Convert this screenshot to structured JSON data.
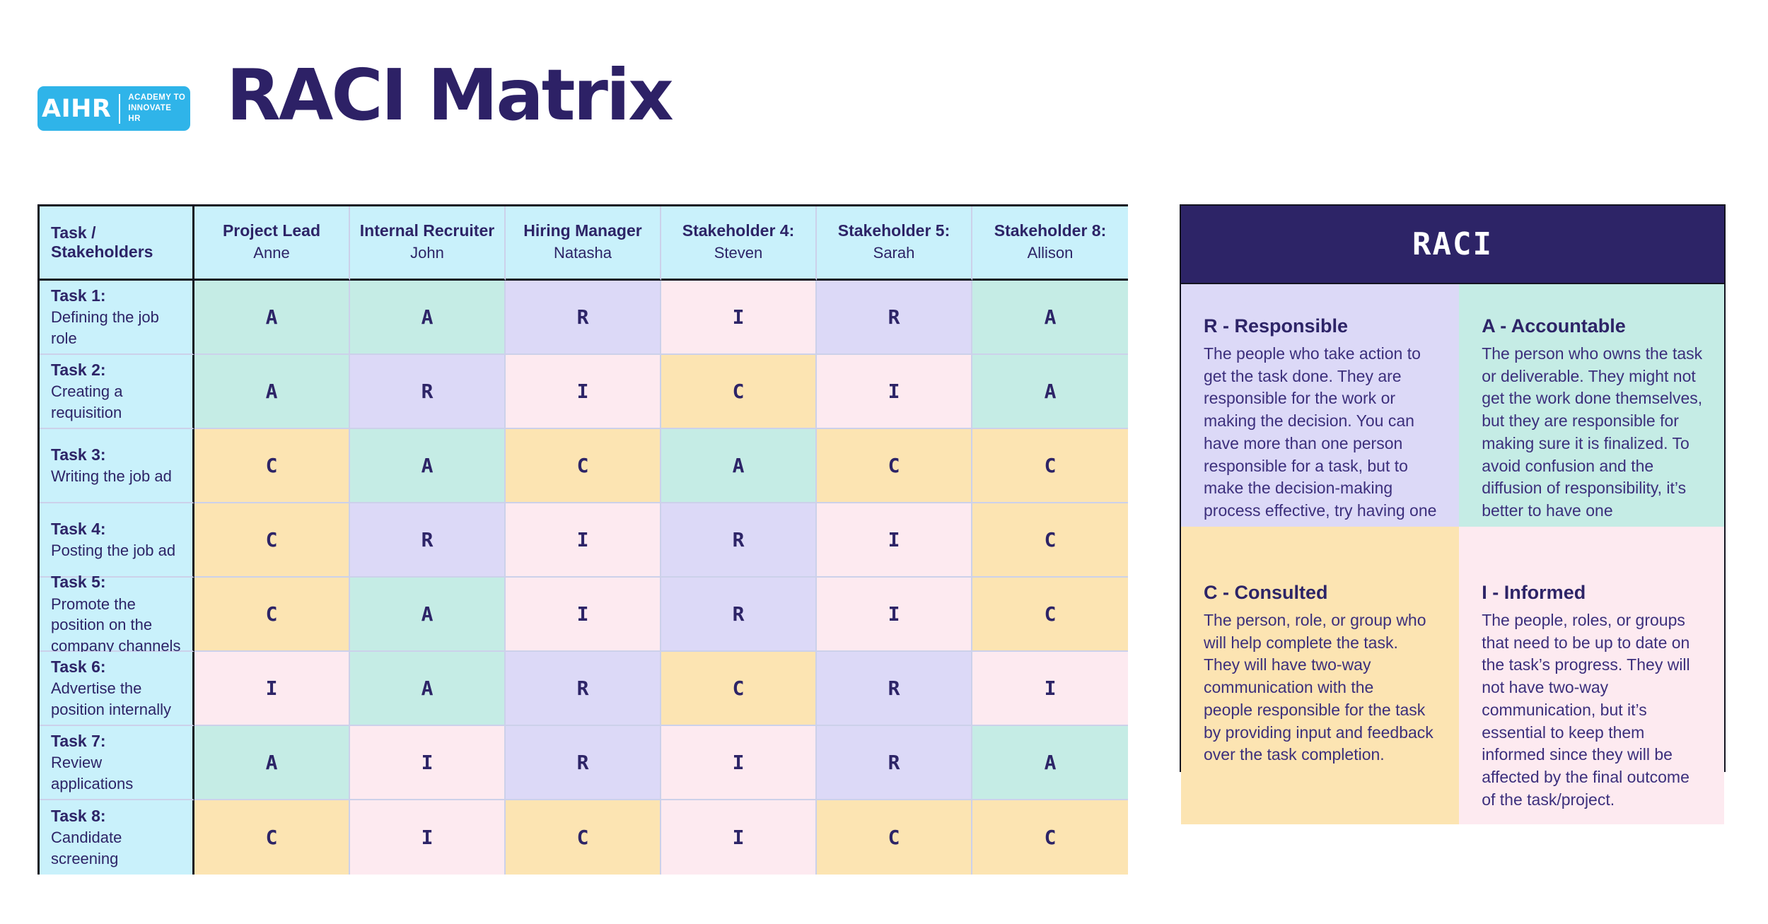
{
  "logo": {
    "word": "AIHR",
    "tagline_line1": "ACADEMY TO",
    "tagline_line2": "INNOVATE HR",
    "bg_color": "#2fb4e9"
  },
  "title": "RACI Matrix",
  "colors": {
    "title_text": "#2d2166",
    "header_bg": "#c9f1fb",
    "task_col_bg": "#c9f1fb",
    "letter_text": "#2d2467",
    "R": "#dcd9f7",
    "A": "#c5ece5",
    "C": "#fce4b2",
    "I": "#fdeaf0"
  },
  "matrix": {
    "corner_header": "Task / Stakeholders",
    "columns": [
      {
        "role": "Project Lead",
        "name": "Anne"
      },
      {
        "role": "Internal Recruiter",
        "name": "John"
      },
      {
        "role": "Hiring Manager",
        "name": "Natasha"
      },
      {
        "role": "Stakeholder 4:",
        "name": "Steven"
      },
      {
        "role": "Stakeholder 5:",
        "name": "Sarah"
      },
      {
        "role": "Stakeholder 8:",
        "name": "Allison"
      }
    ],
    "rows": [
      {
        "task": "Task 1:",
        "desc": "Defining the job role",
        "cells": [
          "A",
          "A",
          "R",
          "I",
          "R",
          "A"
        ]
      },
      {
        "task": "Task 2:",
        "desc": "Creating a requisition",
        "cells": [
          "A",
          "R",
          "I",
          "C",
          "I",
          "A"
        ]
      },
      {
        "task": "Task 3:",
        "desc": "Writing the job ad",
        "cells": [
          "C",
          "A",
          "C",
          "A",
          "C",
          "C"
        ]
      },
      {
        "task": "Task 4:",
        "desc": "Posting the job ad",
        "cells": [
          "C",
          "R",
          "I",
          "R",
          "I",
          "C"
        ]
      },
      {
        "task": "Task 5:",
        "desc": "Promote the position on the company channels",
        "cells": [
          "C",
          "A",
          "I",
          "R",
          "I",
          "C"
        ]
      },
      {
        "task": "Task 6:",
        "desc": "Advertise the position internally",
        "cells": [
          "I",
          "A",
          "R",
          "C",
          "R",
          "I"
        ]
      },
      {
        "task": "Task 7:",
        "desc": "Review applications",
        "cells": [
          "A",
          "I",
          "R",
          "I",
          "R",
          "A"
        ]
      },
      {
        "task": "Task 8:",
        "desc": "Candidate screening",
        "cells": [
          "C",
          "I",
          "C",
          "I",
          "C",
          "C"
        ]
      }
    ]
  },
  "legend": {
    "title": "RACI",
    "header_bg": "#2d2467",
    "items": [
      {
        "key": "R",
        "heading": "R - Responsible",
        "text": "The people who take action to get the task done. They are responsible for the work or making the decision. You can have more than one person responsible for a task, but to make the decision-making process effective, try having one person responsible for a single task."
      },
      {
        "key": "A",
        "heading": "A - Accountable",
        "text": "The person who owns the task or deliverable. They might not get the work done themselves, but they are responsible for making sure it is finalized. To avoid confusion and the diffusion of responsibility, it’s better to have one\naccountable person per project task."
      },
      {
        "key": "C",
        "heading": "C - Consulted",
        "text": "The person, role, or group who will help complete the task. They will have two-way communication with the\npeople responsible for the task by providing input and feedback\nover the task completion."
      },
      {
        "key": "I",
        "heading": "I - Informed",
        "text": "The people, roles, or groups that need to be up to date on the task’s progress. They will not have two-way communication, but it’s essential to keep them informed since they will be affected by the final outcome of the task/project."
      }
    ]
  }
}
